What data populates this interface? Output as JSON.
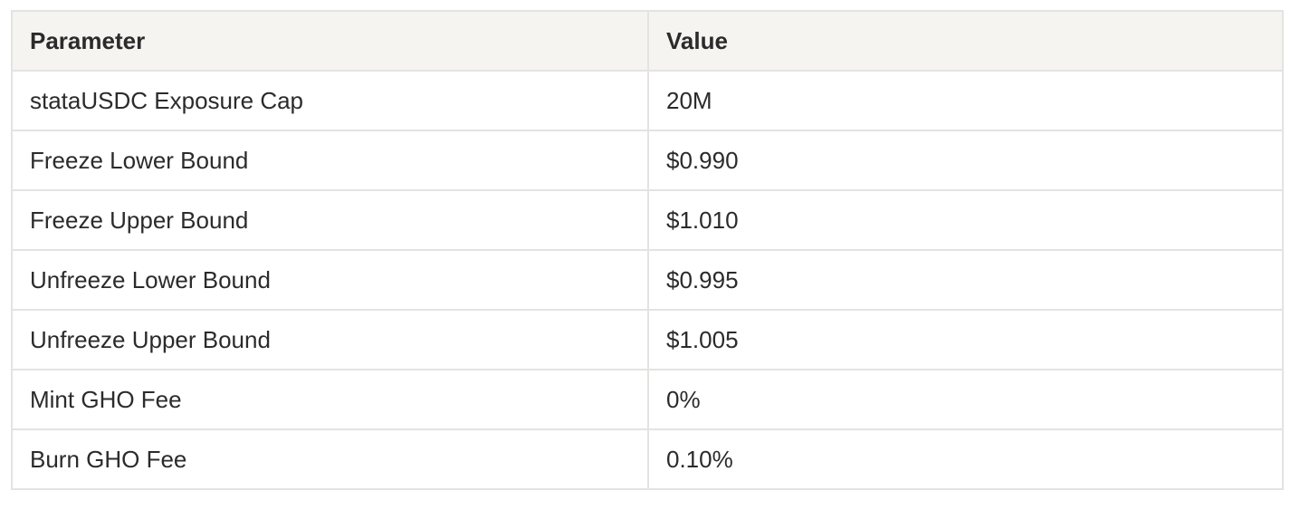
{
  "table": {
    "header": [
      "Parameter",
      "Value"
    ],
    "rows": [
      [
        "stataUSDC Exposure Cap",
        "20M"
      ],
      [
        "Freeze Lower Bound",
        "$0.990"
      ],
      [
        "Freeze Upper Bound",
        "$1.010"
      ],
      [
        "Unfreeze Lower Bound",
        "$0.995"
      ],
      [
        "Unfreeze Upper Bound",
        "$1.005"
      ],
      [
        "Mint GHO Fee",
        "0%"
      ],
      [
        "Burn GHO Fee",
        "0.10%"
      ]
    ]
  }
}
